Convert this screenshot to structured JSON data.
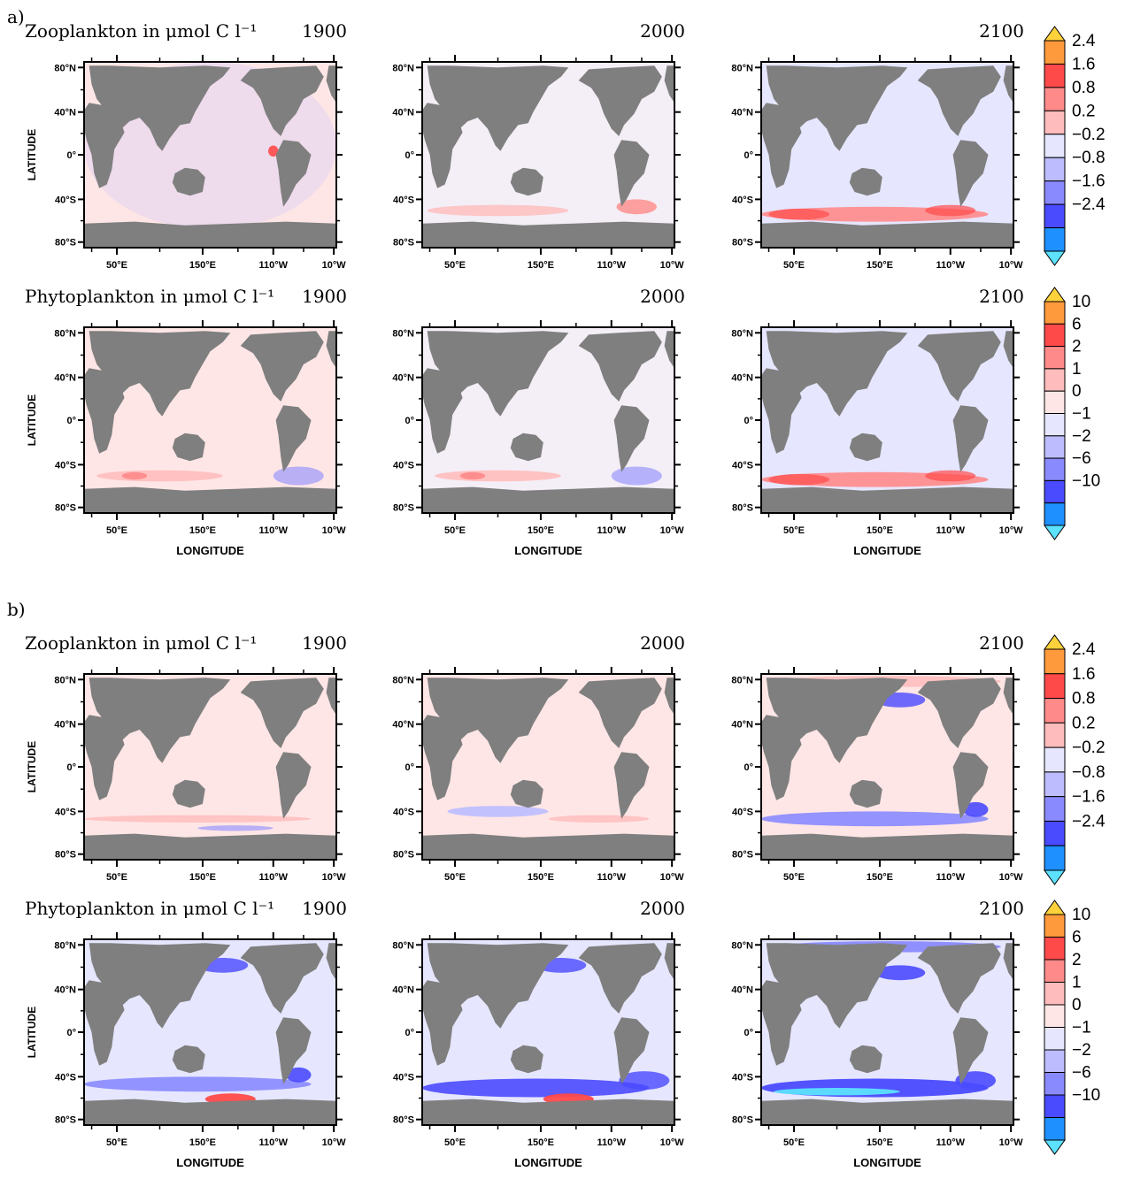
{
  "figure": {
    "sections": [
      {
        "label": "a)",
        "rows": [
          {
            "title": "Zooplankton in μmol C l⁻¹",
            "colorbar": "zoo"
          },
          {
            "title": "Phytoplankton in μmol C l⁻¹",
            "colorbar": "phyto"
          }
        ]
      },
      {
        "label": "b)",
        "rows": [
          {
            "title": "Zooplankton in μmol C l⁻¹",
            "colorbar": "zoo"
          },
          {
            "title": "Phytoplankton in μmol C l⁻¹",
            "colorbar": "phyto"
          }
        ]
      }
    ],
    "years": [
      "1900",
      "2000",
      "2100"
    ],
    "xlabel": "LONGITUDE",
    "ylabel": "LATITUDE",
    "x_ticks": [
      "50°E",
      "150°E",
      "110°W",
      "10°W"
    ],
    "y_ticks": [
      "80°N",
      "40°N",
      "0°",
      "40°S",
      "80°S"
    ],
    "colorbars": {
      "zoo": [
        "2.4",
        "1.6",
        "0.8",
        "0.2",
        "−0.2",
        "−0.8",
        "−1.6",
        "−2.4"
      ],
      "phyto": [
        "10",
        "6",
        "2",
        "1",
        "0",
        "−1",
        "−2",
        "−6",
        "−10"
      ]
    },
    "palette": [
      "#ffd23c",
      "#ff9a3c",
      "#ff4a4a",
      "#ff8a8a",
      "#ffbcbc",
      "#ffe6e6",
      "#e6e6ff",
      "#bcbcff",
      "#8a8aff",
      "#4a4aff",
      "#1e90ff",
      "#5ce1ff"
    ],
    "land_color": "#7f7f7f"
  },
  "chart_data": {
    "type": "heatmap",
    "description_values": "Ocean anomaly maps; colour classes per panel",
    "panels": [
      {
        "section": "a)",
        "variable": "Zooplankton",
        "year": "1900",
        "ocean_class": "slight-positive",
        "features": [
          "speckled",
          "eq-pacific-positive"
        ]
      },
      {
        "section": "a)",
        "variable": "Zooplankton",
        "year": "2000",
        "ocean_class": "near-zero",
        "features": [
          "southern-ocean-positive-weak"
        ]
      },
      {
        "section": "a)",
        "variable": "Zooplankton",
        "year": "2100",
        "ocean_class": "slight-negative",
        "features": [
          "southern-ocean-positive-band"
        ]
      },
      {
        "section": "a)",
        "variable": "Phytoplankton",
        "year": "1900",
        "ocean_class": "slight-positive",
        "features": [
          "southern-ocean-mixed"
        ]
      },
      {
        "section": "a)",
        "variable": "Phytoplankton",
        "year": "2000",
        "ocean_class": "near-zero",
        "features": [
          "southern-ocean-mixed"
        ]
      },
      {
        "section": "a)",
        "variable": "Phytoplankton",
        "year": "2100",
        "ocean_class": "slight-negative",
        "features": [
          "southern-ocean-positive-band"
        ]
      },
      {
        "section": "b)",
        "variable": "Zooplankton",
        "year": "1900",
        "ocean_class": "slight-positive",
        "features": [
          "southern-ocean-weak"
        ]
      },
      {
        "section": "b)",
        "variable": "Zooplankton",
        "year": "2000",
        "ocean_class": "slight-positive",
        "features": [
          "southern-ocean-negative-weak"
        ]
      },
      {
        "section": "b)",
        "variable": "Zooplankton",
        "year": "2100",
        "ocean_class": "slight-positive",
        "features": [
          "arctic-positive",
          "north-pacific-negative",
          "southern-ocean-negative-band"
        ]
      },
      {
        "section": "b)",
        "variable": "Phytoplankton",
        "year": "1900",
        "ocean_class": "slight-negative",
        "features": [
          "southern-ocean-negative-band",
          "ross-sea-positive",
          "north-pacific-negative"
        ]
      },
      {
        "section": "b)",
        "variable": "Phytoplankton",
        "year": "2000",
        "ocean_class": "slight-negative",
        "features": [
          "southern-ocean-strong-negative",
          "ross-sea-positive",
          "north-pacific-negative"
        ]
      },
      {
        "section": "b)",
        "variable": "Phytoplankton",
        "year": "2100",
        "ocean_class": "slight-negative",
        "features": [
          "arctic-strong-negative",
          "north-pacific-strong-negative",
          "southern-ocean-extreme-negative"
        ]
      }
    ]
  }
}
